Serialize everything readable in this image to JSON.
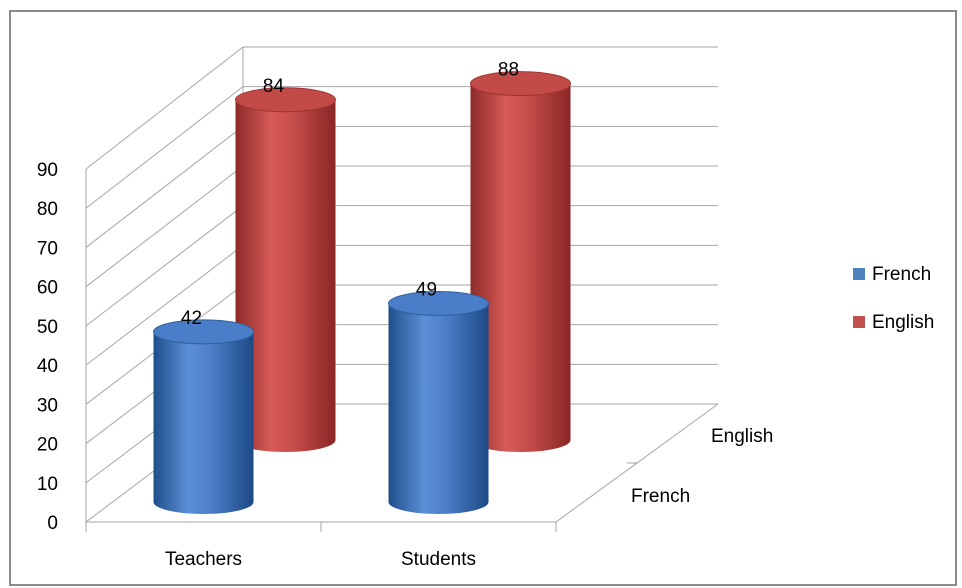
{
  "chart_data": {
    "type": "bar",
    "style": "3d-cylinder",
    "categories": [
      "Teachers",
      "Students"
    ],
    "depth_categories": [
      "French",
      "English"
    ],
    "series": [
      {
        "name": "French",
        "values": [
          42,
          49
        ],
        "color": "#4f81bd"
      },
      {
        "name": "English",
        "values": [
          84,
          88
        ],
        "color": "#c0504d"
      }
    ],
    "ylim": [
      0,
      90
    ],
    "yticks": [
      0,
      10,
      20,
      30,
      40,
      50,
      60,
      70,
      80,
      90
    ],
    "grid": true,
    "legend": "right"
  }
}
